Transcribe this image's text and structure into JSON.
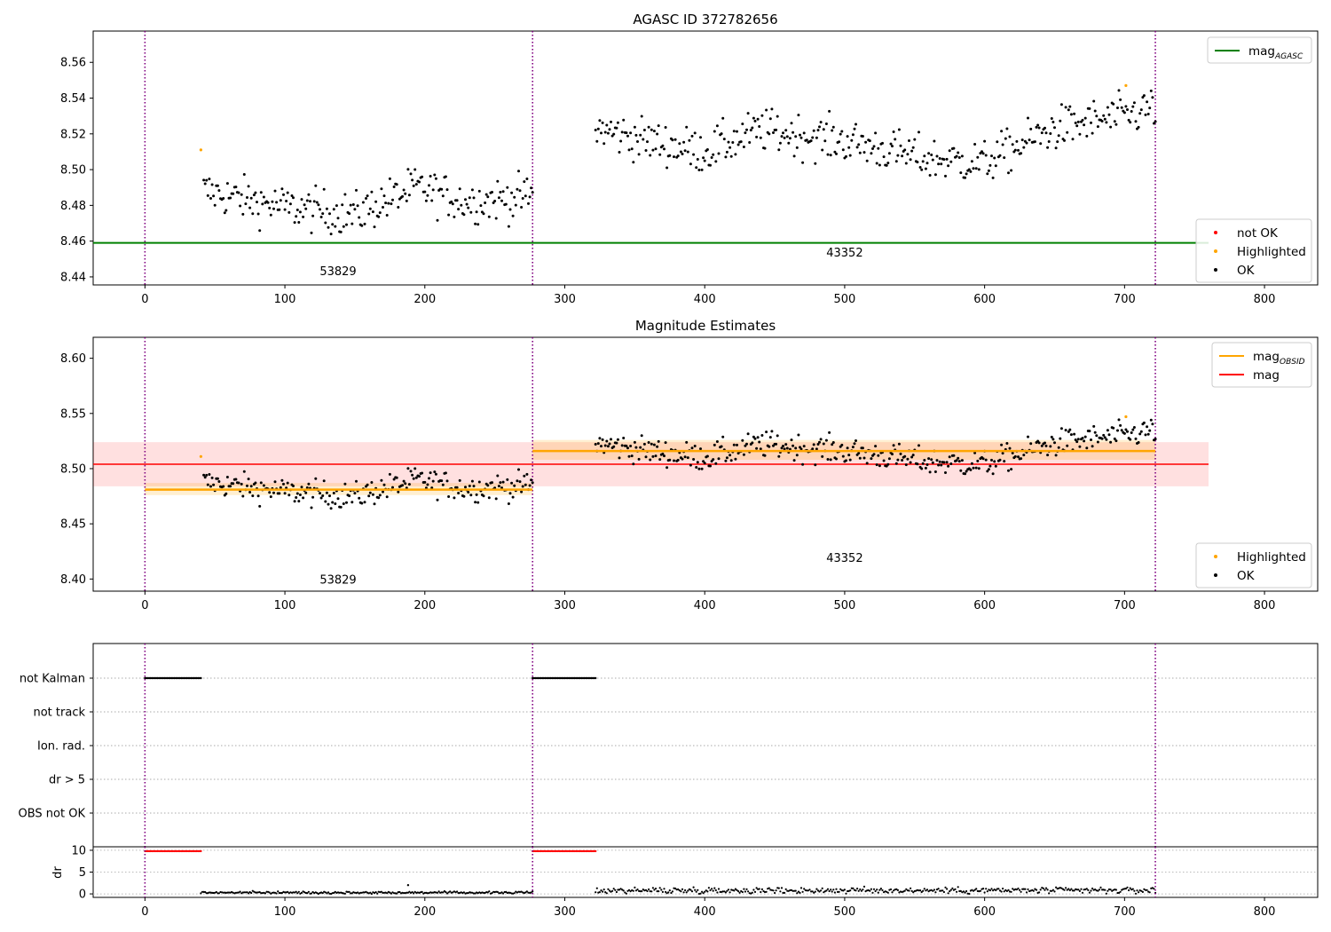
{
  "figure": {
    "vlines_x": [
      0,
      277,
      722
    ],
    "colors": {
      "ok": "#000000",
      "highlighted": "#ffa500",
      "not_ok": "#ff0000",
      "agasc": "#008000",
      "mag": "#ff0000",
      "mag_obsid": "#ffa500",
      "vline": "#800080"
    }
  },
  "chart_data": [
    {
      "type": "scatter",
      "title": "AGASC ID 372782656",
      "xlim": [
        -37,
        838
      ],
      "ylim": [
        8.4355,
        8.5775
      ],
      "xticks": [
        0,
        100,
        200,
        300,
        400,
        500,
        600,
        700,
        800
      ],
      "yticks": [
        8.44,
        8.46,
        8.48,
        8.5,
        8.52,
        8.54,
        8.56
      ],
      "ytick_labels": [
        "8.44",
        "8.46",
        "8.48",
        "8.50",
        "8.52",
        "8.54",
        "8.56"
      ],
      "agasc_mag": 8.459,
      "agasc_x_range": [
        -37,
        760
      ],
      "obsid_labels": [
        {
          "text": "53829",
          "x": 138,
          "y": 8.441
        },
        {
          "text": "43352",
          "x": 500,
          "y": 8.4515
        }
      ],
      "segments": [
        {
          "x_range": [
            42,
            277
          ],
          "trend": [
            [
              42,
              8.488
            ],
            [
              100,
              8.479
            ],
            [
              150,
              8.475
            ],
            [
              195,
              8.49
            ],
            [
              230,
              8.482
            ],
            [
              277,
              8.485
            ]
          ],
          "noise": 0.006
        },
        {
          "x_range": [
            322,
            722
          ],
          "trend": [
            [
              322,
              8.523
            ],
            [
              360,
              8.516
            ],
            [
              400,
              8.51
            ],
            [
              440,
              8.522
            ],
            [
              500,
              8.516
            ],
            [
              560,
              8.506
            ],
            [
              600,
              8.504
            ],
            [
              650,
              8.523
            ],
            [
              700,
              8.53
            ],
            [
              722,
              8.535
            ]
          ],
          "noise": 0.006
        }
      ],
      "highlighted": [
        {
          "x": 40,
          "y": 8.511
        },
        {
          "x": 701,
          "y": 8.547
        }
      ],
      "legend_top": [
        {
          "label": "mag",
          "sub": "AGASC",
          "marker": "line",
          "color": "#008000"
        }
      ],
      "legend_bottom": [
        {
          "label": "not OK",
          "marker": "dot",
          "color": "#ff0000"
        },
        {
          "label": "Highlighted",
          "marker": "dot",
          "color": "#ffa500"
        },
        {
          "label": "OK",
          "marker": "dot",
          "color": "#000000"
        }
      ]
    },
    {
      "type": "scatter",
      "title": "Magnitude Estimates",
      "xlim": [
        -37,
        838
      ],
      "ylim": [
        8.389,
        8.619
      ],
      "xticks": [
        0,
        100,
        200,
        300,
        400,
        500,
        600,
        700,
        800
      ],
      "yticks": [
        8.4,
        8.45,
        8.5,
        8.55,
        8.6
      ],
      "ytick_labels": [
        "8.40",
        "8.45",
        "8.50",
        "8.55",
        "8.60"
      ],
      "mag": 8.504,
      "mag_band": [
        8.484,
        8.524
      ],
      "mag_x_range": [
        -37,
        760
      ],
      "obsid_mags": [
        {
          "x_range": [
            0,
            277
          ],
          "mag": 8.481,
          "band": [
            8.476,
            8.487
          ]
        },
        {
          "x_range": [
            277,
            722
          ],
          "mag": 8.516,
          "band": [
            8.508,
            8.526
          ]
        }
      ],
      "obsid_labels": [
        {
          "text": "53829",
          "x": 138,
          "y": 8.396
        },
        {
          "text": "43352",
          "x": 500,
          "y": 8.4155
        }
      ],
      "legend_top": [
        {
          "label": "mag",
          "sub": "OBSID",
          "marker": "line",
          "color": "#ffa500"
        },
        {
          "label": "mag",
          "sub": "",
          "marker": "line",
          "color": "#ff0000"
        }
      ],
      "legend_bottom": [
        {
          "label": "Highlighted",
          "marker": "dot",
          "color": "#ffa500"
        },
        {
          "label": "OK",
          "marker": "dot",
          "color": "#000000"
        }
      ]
    },
    {
      "type": "scatter",
      "title": "",
      "flags": [
        "not Kalman",
        "not track",
        "Ion. rad.",
        "dr > 5",
        "OBS not OK"
      ],
      "flag_ranges": [
        {
          "flag": "not Kalman",
          "ranges": [
            [
              0,
              40
            ],
            [
              277,
              322
            ]
          ]
        }
      ]
    },
    {
      "type": "scatter",
      "ylabel": "dr",
      "xlim": [
        -37,
        838
      ],
      "ylim": [
        -0.8,
        10.8
      ],
      "xticks": [
        0,
        100,
        200,
        300,
        400,
        500,
        600,
        700,
        800
      ],
      "yticks": [
        0,
        5,
        10
      ],
      "ytick_labels": [
        "0",
        "5",
        "10"
      ],
      "dr_capped": {
        "value": 9.8,
        "ranges": [
          [
            0,
            40
          ],
          [
            277,
            322
          ]
        ]
      },
      "dr_segments": [
        {
          "x_range": [
            40,
            277
          ],
          "level": 0.3,
          "noise": 0.12
        },
        {
          "x_range": [
            322,
            722
          ],
          "level": 0.8,
          "noise": 0.35
        }
      ],
      "outliers": [
        {
          "x": 188,
          "y": 2.0
        }
      ]
    }
  ]
}
